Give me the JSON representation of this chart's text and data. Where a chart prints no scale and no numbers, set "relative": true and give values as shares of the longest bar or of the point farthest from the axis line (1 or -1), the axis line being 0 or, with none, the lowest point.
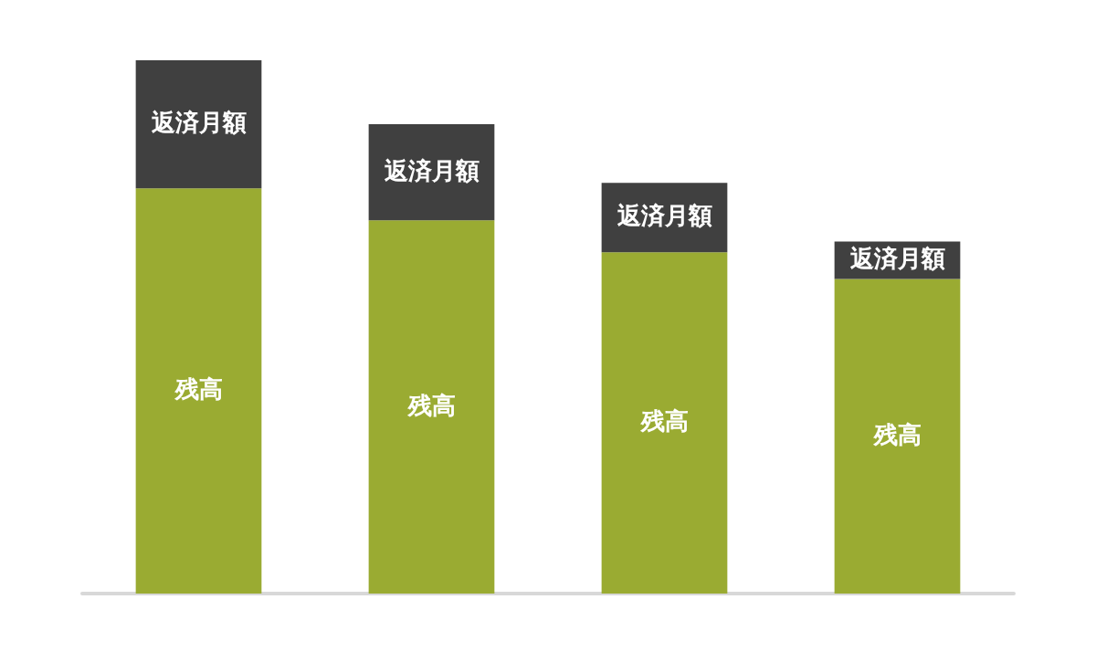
{
  "chart_data": {
    "type": "bar",
    "relative": true,
    "stacked": true,
    "categories": [
      null,
      null,
      null,
      null
    ],
    "series": [
      {
        "name": "残高",
        "color": "#9aab32",
        "values": [
          0.76,
          0.7,
          0.64,
          0.59
        ]
      },
      {
        "name": "返済月額",
        "color": "#404040",
        "values": [
          0.24,
          0.18,
          0.13,
          0.07
        ]
      }
    ]
  }
}
